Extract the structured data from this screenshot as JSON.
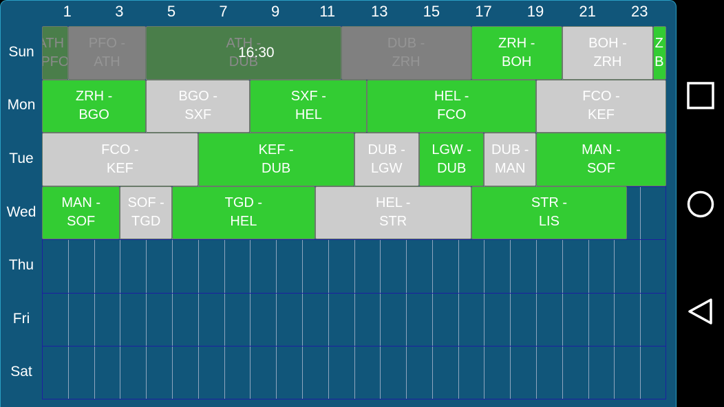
{
  "hour_labels": [
    "1",
    "3",
    "5",
    "7",
    "9",
    "11",
    "13",
    "15",
    "17",
    "19",
    "21",
    "23"
  ],
  "days": [
    "Sun",
    "Mon",
    "Tue",
    "Wed",
    "Thu",
    "Fri",
    "Sat"
  ],
  "current_time_label": "16:30",
  "colors": {
    "active": "#33cc33",
    "inactive": "#cccccc",
    "past_active": "#4a7e4a",
    "past_inactive": "#808080",
    "background": "#11567a"
  },
  "flights": [
    {
      "day": 0,
      "start": 0,
      "end": 1,
      "label": "ATH -\nPFO",
      "color": "green",
      "past": true
    },
    {
      "day": 0,
      "start": 1,
      "end": 4,
      "label": "PFO -\nATH",
      "color": "grey",
      "past": true
    },
    {
      "day": 0,
      "start": 4,
      "end": 11.5,
      "label": "ATH -\nDUB",
      "color": "green",
      "past": true
    },
    {
      "day": 0,
      "start": 11.5,
      "end": 16.5,
      "label": "DUB -\nZRH",
      "color": "grey",
      "past": true
    },
    {
      "day": 0,
      "start": 16.5,
      "end": 20,
      "label": "ZRH -\nBOH",
      "color": "green",
      "past": false
    },
    {
      "day": 0,
      "start": 20,
      "end": 23.5,
      "label": "BOH -\nZRH",
      "color": "grey",
      "past": false
    },
    {
      "day": 0,
      "start": 23.5,
      "end": 24,
      "label": "Z\nB",
      "color": "green",
      "past": false
    },
    {
      "day": 1,
      "start": 0,
      "end": 4,
      "label": "ZRH -\nBGO",
      "color": "green",
      "past": false
    },
    {
      "day": 1,
      "start": 4,
      "end": 8,
      "label": "BGO -\nSXF",
      "color": "grey",
      "past": false
    },
    {
      "day": 1,
      "start": 8,
      "end": 12.5,
      "label": "SXF -\nHEL",
      "color": "green",
      "past": false
    },
    {
      "day": 1,
      "start": 12.5,
      "end": 19,
      "label": "HEL -\nFCO",
      "color": "green",
      "past": false
    },
    {
      "day": 1,
      "start": 19,
      "end": 24,
      "label": "FCO -\nKEF",
      "color": "grey",
      "past": false
    },
    {
      "day": 2,
      "start": 0,
      "end": 6,
      "label": "FCO -\nKEF",
      "color": "grey",
      "past": false
    },
    {
      "day": 2,
      "start": 6,
      "end": 12,
      "label": "KEF -\nDUB",
      "color": "green",
      "past": false
    },
    {
      "day": 2,
      "start": 12,
      "end": 14.5,
      "label": "DUB -\nLGW",
      "color": "grey",
      "past": false
    },
    {
      "day": 2,
      "start": 14.5,
      "end": 17,
      "label": "LGW -\nDUB",
      "color": "green",
      "past": false
    },
    {
      "day": 2,
      "start": 17,
      "end": 19,
      "label": "DUB -\nMAN",
      "color": "grey",
      "past": false
    },
    {
      "day": 2,
      "start": 19,
      "end": 24,
      "label": "MAN -\nSOF",
      "color": "green",
      "past": false
    },
    {
      "day": 3,
      "start": 0,
      "end": 3,
      "label": "MAN -\nSOF",
      "color": "green",
      "past": false
    },
    {
      "day": 3,
      "start": 3,
      "end": 5,
      "label": "SOF -\nTGD",
      "color": "grey",
      "past": false
    },
    {
      "day": 3,
      "start": 5,
      "end": 10.5,
      "label": "TGD -\nHEL",
      "color": "green",
      "past": false
    },
    {
      "day": 3,
      "start": 10.5,
      "end": 16.5,
      "label": "HEL -\nSTR",
      "color": "grey",
      "past": false
    },
    {
      "day": 3,
      "start": 16.5,
      "end": 22.5,
      "label": "STR -\nLIS",
      "color": "green",
      "past": false
    }
  ],
  "nav": {
    "recents": "square-icon",
    "home": "circle-icon",
    "back": "triangle-back-icon"
  }
}
